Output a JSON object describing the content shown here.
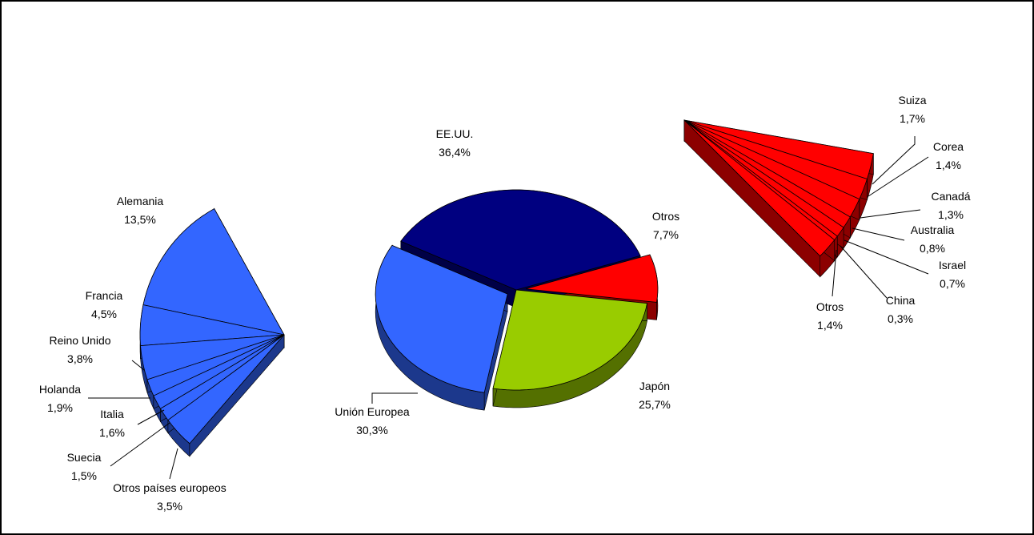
{
  "chart_data": [
    {
      "type": "pie",
      "categories": [
        "Otros",
        "Japón",
        "Unión Europea",
        "EE.UU."
      ],
      "values": [
        7.7,
        25.7,
        30.3,
        36.4
      ],
      "value_labels": [
        "7,7%",
        "25,7%",
        "30,3%",
        "36,4%"
      ],
      "colors": [
        "#ff0000",
        "#99cc00",
        "#3366ff",
        "#000080"
      ]
    },
    {
      "type": "pie",
      "categories": [
        "Alemania",
        "Francia",
        "Reino Unido",
        "Holanda",
        "Italia",
        "Suecia",
        "Otros países europeos"
      ],
      "values": [
        13.5,
        4.5,
        3.8,
        1.9,
        1.6,
        1.5,
        3.5
      ],
      "value_labels": [
        "13,5%",
        "4,5%",
        "3,8%",
        "1,9%",
        "1,6%",
        "1,5%",
        "3,5%"
      ],
      "color": "#3366ff"
    },
    {
      "type": "pie",
      "categories": [
        "Suiza",
        "Corea",
        "Canadá",
        "Australia",
        "Israel",
        "China",
        "Otros"
      ],
      "values": [
        1.7,
        1.4,
        1.3,
        0.8,
        0.7,
        0.3,
        1.4
      ],
      "value_labels": [
        "1,7%",
        "1,4%",
        "1,3%",
        "0,8%",
        "0,7%",
        "0,3%",
        "1,4%"
      ],
      "color": "#ff0000"
    }
  ]
}
